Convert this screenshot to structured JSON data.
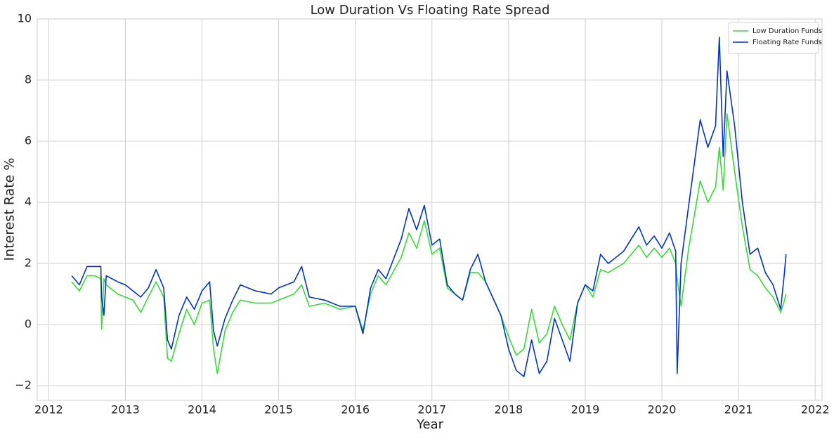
{
  "chart_data": {
    "type": "line",
    "title": "Low Duration Vs Floating Rate Spread",
    "xlabel": "Year",
    "ylabel": "Interest Rate %",
    "x": [
      2012.3,
      2012.4,
      2012.5,
      2012.6,
      2012.68,
      2012.69,
      2012.72,
      2012.75,
      2012.9,
      2013.0,
      2013.1,
      2013.2,
      2013.3,
      2013.4,
      2013.5,
      2013.55,
      2013.6,
      2013.7,
      2013.8,
      2013.9,
      2014.0,
      2014.1,
      2014.15,
      2014.2,
      2014.3,
      2014.4,
      2014.5,
      2014.7,
      2014.9,
      2015.0,
      2015.2,
      2015.3,
      2015.4,
      2015.6,
      2015.8,
      2016.0,
      2016.1,
      2016.2,
      2016.3,
      2016.4,
      2016.6,
      2016.7,
      2016.8,
      2016.9,
      2017.0,
      2017.1,
      2017.2,
      2017.3,
      2017.4,
      2017.5,
      2017.6,
      2017.7,
      2017.9,
      2018.0,
      2018.1,
      2018.2,
      2018.3,
      2018.4,
      2018.5,
      2018.6,
      2018.7,
      2018.8,
      2018.9,
      2019.0,
      2019.1,
      2019.2,
      2019.3,
      2019.5,
      2019.7,
      2019.8,
      2019.9,
      2020.0,
      2020.1,
      2020.18,
      2020.2,
      2020.25,
      2020.35,
      2020.5,
      2020.6,
      2020.7,
      2020.75,
      2020.8,
      2020.85,
      2020.95,
      2021.05,
      2021.15,
      2021.25,
      2021.35,
      2021.45,
      2021.55,
      2021.6,
      2021.62
    ],
    "series": [
      {
        "name": "Low Duration Funds",
        "color": "#33dd33",
        "values": [
          1.4,
          1.1,
          1.6,
          1.6,
          1.5,
          -0.15,
          1.5,
          1.3,
          1.0,
          0.9,
          0.8,
          0.4,
          0.9,
          1.4,
          0.9,
          -1.1,
          -1.2,
          -0.3,
          0.5,
          0.0,
          0.7,
          0.8,
          -0.8,
          -1.6,
          -0.2,
          0.4,
          0.8,
          0.7,
          0.7,
          0.8,
          1.0,
          1.3,
          0.6,
          0.7,
          0.5,
          0.6,
          -0.2,
          1.0,
          1.6,
          1.3,
          2.2,
          3.0,
          2.5,
          3.4,
          2.3,
          2.5,
          1.2,
          1.0,
          0.8,
          1.7,
          1.7,
          1.4,
          0.3,
          -0.4,
          -1.0,
          -0.8,
          0.5,
          -0.6,
          -0.3,
          0.6,
          0.0,
          -0.5,
          0.7,
          1.3,
          0.9,
          1.8,
          1.7,
          2.0,
          2.6,
          2.2,
          2.5,
          2.2,
          2.5,
          2.0,
          1.5,
          0.6,
          2.5,
          4.7,
          4.0,
          4.5,
          5.8,
          4.4,
          6.9,
          5.0,
          3.2,
          1.8,
          1.6,
          1.2,
          0.9,
          0.4,
          0.8,
          1.0
        ]
      },
      {
        "name": "Floating Rate Funds",
        "color": "#0033cc",
        "values": [
          1.6,
          1.3,
          1.9,
          1.9,
          1.9,
          0.9,
          0.3,
          1.6,
          1.4,
          1.3,
          1.1,
          0.9,
          1.2,
          1.8,
          1.2,
          -0.5,
          -0.8,
          0.3,
          0.9,
          0.5,
          1.1,
          1.4,
          -0.2,
          -0.7,
          0.2,
          0.8,
          1.3,
          1.1,
          1.0,
          1.2,
          1.4,
          1.9,
          0.9,
          0.8,
          0.6,
          0.6,
          -0.3,
          1.2,
          1.8,
          1.5,
          2.8,
          3.8,
          3.1,
          3.9,
          2.6,
          2.8,
          1.3,
          1.0,
          0.8,
          1.8,
          2.3,
          1.4,
          0.3,
          -0.8,
          -1.5,
          -1.7,
          -0.5,
          -1.6,
          -1.2,
          0.2,
          -0.5,
          -1.2,
          0.7,
          1.3,
          1.1,
          2.3,
          2.0,
          2.4,
          3.2,
          2.6,
          2.9,
          2.5,
          3.0,
          2.4,
          -1.6,
          2.0,
          3.9,
          6.7,
          5.8,
          6.5,
          9.4,
          5.5,
          8.3,
          6.5,
          4.0,
          2.3,
          2.5,
          1.7,
          1.3,
          0.5,
          1.7,
          2.3
        ]
      }
    ],
    "xlim": [
      2011.85,
      2022.09
    ],
    "xticks": [
      2012,
      2013,
      2014,
      2015,
      2016,
      2017,
      2018,
      2019,
      2020,
      2021,
      2022
    ],
    "ylim": [
      -2.48,
      10
    ],
    "yticks": [
      {
        "value": -2,
        "label": "−2"
      },
      0,
      2,
      4,
      6,
      8,
      10
    ],
    "grid": true,
    "legend": "upper right"
  }
}
